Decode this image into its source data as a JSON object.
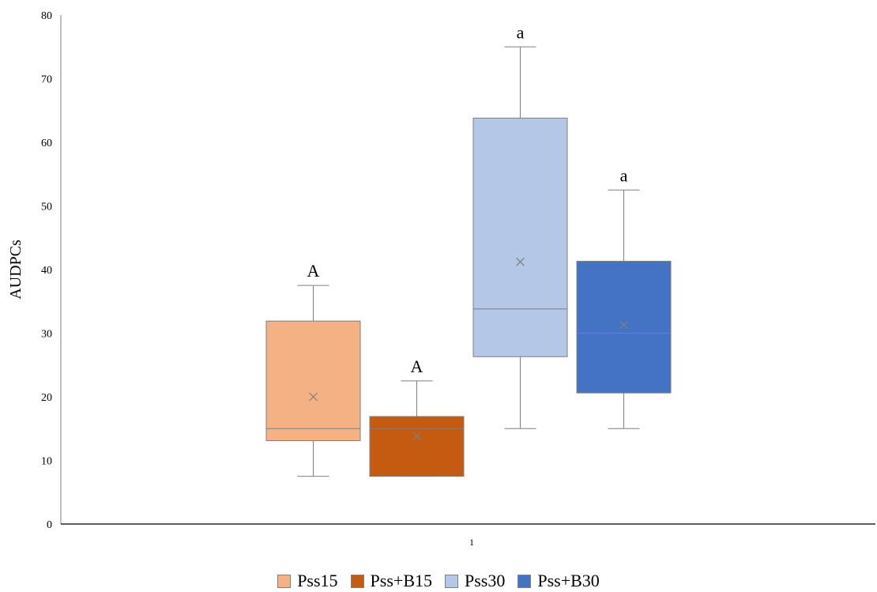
{
  "chart_data": {
    "type": "box",
    "title": "",
    "xlabel": "",
    "ylabel": "AUDPCs",
    "ylim": [
      0,
      80
    ],
    "yticks": [
      0,
      10,
      20,
      30,
      40,
      50,
      60,
      70,
      80
    ],
    "categories": [
      "1"
    ],
    "grid": false,
    "legend_position": "bottom",
    "series": [
      {
        "name": "Pss15",
        "color": "#f4b183",
        "min": 7.5,
        "q1": 13.1,
        "median": 15.0,
        "q3": 31.9,
        "max": 37.5,
        "mean": 20.0,
        "letter": "A"
      },
      {
        "name": "Pss+B15",
        "color": "#c55a11",
        "min": 7.5,
        "q1": 7.5,
        "median": 15.0,
        "q3": 16.9,
        "max": 22.5,
        "mean": 13.8,
        "letter": "A"
      },
      {
        "name": "Pss30",
        "color": "#b4c7e7",
        "min": 15.0,
        "q1": 26.3,
        "median": 33.8,
        "q3": 63.8,
        "max": 75.0,
        "mean": 41.2,
        "letter": "a"
      },
      {
        "name": "Pss+B30",
        "color": "#4472c4",
        "min": 15.0,
        "q1": 20.6,
        "median": 30.0,
        "q3": 41.3,
        "max": 52.5,
        "mean": 31.3,
        "letter": "a"
      }
    ]
  }
}
